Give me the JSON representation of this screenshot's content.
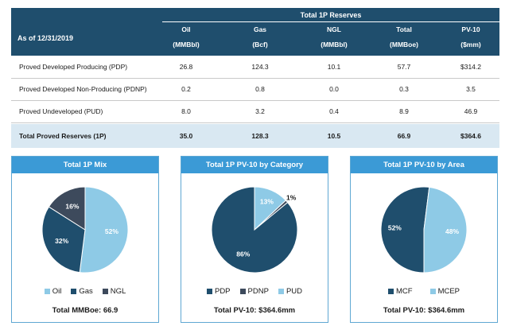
{
  "table": {
    "as_of": "As of 12/31/2019",
    "group_title": "Total 1P Reserves",
    "columns": [
      {
        "name": "Oil",
        "unit": "(MMBbl)"
      },
      {
        "name": "Gas",
        "unit": "(Bcf)"
      },
      {
        "name": "NGL",
        "unit": "(MMBbl)"
      },
      {
        "name": "Total",
        "unit": "(MMBoe)"
      },
      {
        "name": "PV-10",
        "unit": "($mm)"
      }
    ],
    "rows": [
      {
        "label": "Proved Developed Producing (PDP)",
        "values": [
          "26.8",
          "124.3",
          "10.1",
          "57.7",
          "$314.2"
        ]
      },
      {
        "label": "Proved Developed Non-Producing (PDNP)",
        "values": [
          "0.2",
          "0.8",
          "0.0",
          "0.3",
          "3.5"
        ]
      },
      {
        "label": "Proved Undeveloped (PUD)",
        "values": [
          "8.0",
          "3.2",
          "0.4",
          "8.9",
          "46.9"
        ]
      },
      {
        "label": "Total Proved Reserves (1P)",
        "values": [
          "35.0",
          "128.3",
          "10.5",
          "66.9",
          "$364.6"
        ]
      }
    ]
  },
  "chart_data": [
    {
      "type": "pie",
      "title": "Total 1P Mix",
      "footer": "Total MMBoe: 66.9",
      "slices": [
        {
          "name": "Oil",
          "value": 52,
          "label": "52%",
          "color": "#8ecae6"
        },
        {
          "name": "Gas",
          "value": 32,
          "label": "32%",
          "color": "#1f4e6d"
        },
        {
          "name": "NGL",
          "value": 16,
          "label": "16%",
          "color": "#3d4a5c"
        }
      ],
      "legend_position": "bottom"
    },
    {
      "type": "pie",
      "title": "Total 1P PV-10 by Category",
      "footer": "Total PV-10: $364.6mm",
      "slices": [
        {
          "name": "PDP",
          "value": 86,
          "label": "86%",
          "color": "#1f4e6d"
        },
        {
          "name": "PDNP",
          "value": 1,
          "label": "1%",
          "color": "#3d4a5c"
        },
        {
          "name": "PUD",
          "value": 13,
          "label": "13%",
          "color": "#8ecae6"
        }
      ],
      "legend_position": "bottom"
    },
    {
      "type": "pie",
      "title": "Total 1P PV-10 by Area",
      "footer": "Total PV-10: $364.6mm",
      "slices": [
        {
          "name": "MCF",
          "value": 52,
          "label": "52%",
          "color": "#1f4e6d"
        },
        {
          "name": "MCEP",
          "value": 48,
          "label": "48%",
          "color": "#8ecae6"
        }
      ],
      "legend_position": "bottom"
    }
  ]
}
